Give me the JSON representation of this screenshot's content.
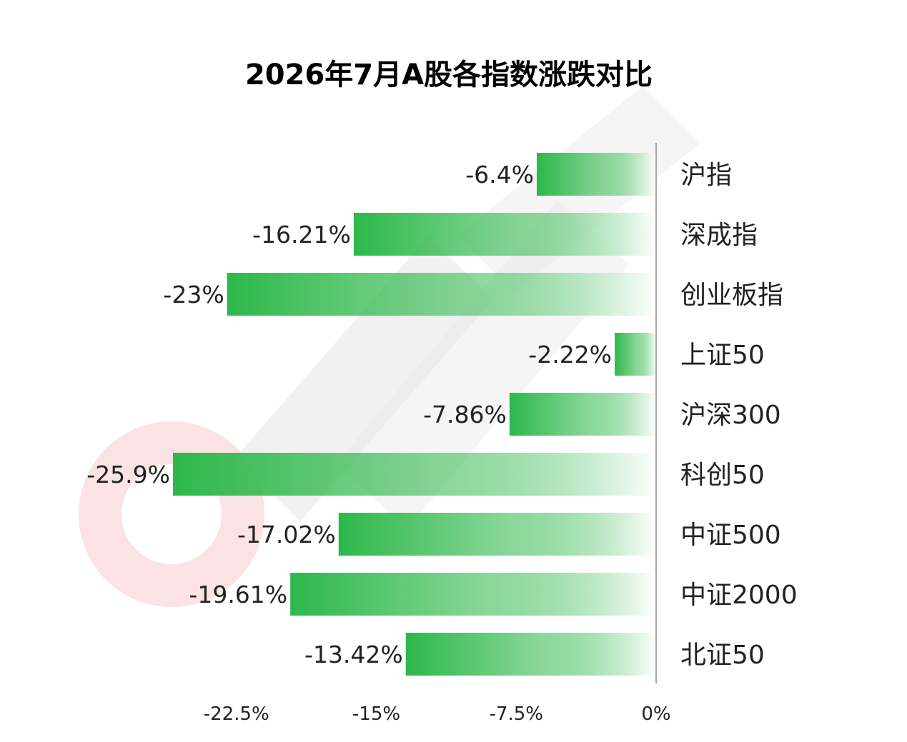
{
  "chart_data": {
    "type": "bar",
    "orientation": "horizontal",
    "title": "2026年7月A股各指数涨跌对比",
    "xlabel": "",
    "ylabel": "",
    "categories": [
      "沪指",
      "深成指",
      "创业板指",
      "上证50",
      "沪深300",
      "科创50",
      "中证500",
      "中证2000",
      "北证50"
    ],
    "values": [
      -6.4,
      -16.21,
      -23,
      -2.22,
      -7.86,
      -25.9,
      -17.02,
      -19.61,
      -13.42
    ],
    "data_labels": [
      "-6.4%",
      "-16.21%",
      "-23%",
      "-2.22%",
      "-7.86%",
      "-25.9%",
      "-17.02%",
      "-19.61%",
      "-13.42%"
    ],
    "x_ticks": [
      -22.5,
      -15,
      -7.5,
      0
    ],
    "x_tick_labels": [
      "-22.5%",
      "-15%",
      "-7.5%",
      "0%"
    ],
    "xlim": [
      -26.5,
      0
    ],
    "grid": false,
    "legend": "none",
    "category_axis_side": "right",
    "bar_color": "#2db84a",
    "bar_fade_color": "#ffffff",
    "axis_color": "#888888",
    "text_color": "#222222",
    "watermark_color": "#e8e8e8",
    "watermark_accent_color": "#fbe3e3"
  }
}
